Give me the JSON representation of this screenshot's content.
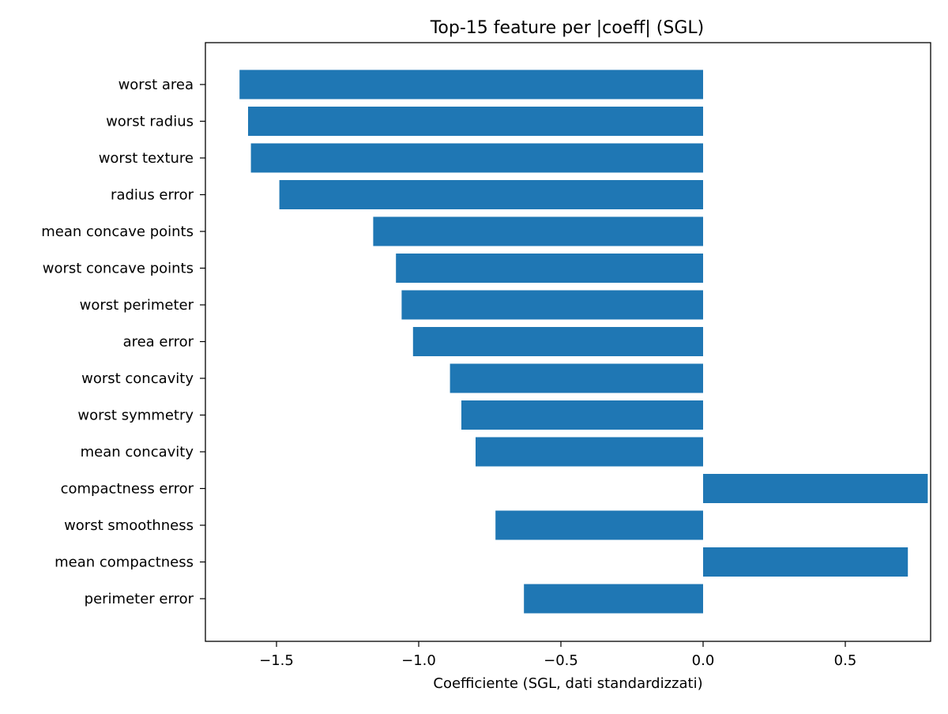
{
  "colors": {
    "bar": "#1f77b4",
    "axis": "#000000",
    "background": "#ffffff"
  },
  "chart_data": {
    "type": "bar",
    "orientation": "horizontal",
    "title": "Top-15 feature per |coeff| (SGL)",
    "xlabel": "Coefficiente (SGL, dati standardizzati)",
    "ylabel": "",
    "xlim": [
      -1.75,
      0.8
    ],
    "grid": false,
    "legend": "none",
    "xticks": [
      -1.5,
      -1.0,
      -0.5,
      0.0,
      0.5
    ],
    "xtick_labels": [
      "−1.5",
      "−1.0",
      "−0.5",
      "0.0",
      "0.5"
    ],
    "categories": [
      "worst area",
      "worst radius",
      "worst texture",
      "radius error",
      "mean concave points",
      "worst concave points",
      "worst perimeter",
      "area error",
      "worst concavity",
      "worst symmetry",
      "mean concavity",
      "compactness error",
      "worst smoothness",
      "mean compactness",
      "perimeter error"
    ],
    "values": [
      -1.63,
      -1.6,
      -1.59,
      -1.49,
      -1.16,
      -1.08,
      -1.06,
      -1.02,
      -0.89,
      -0.85,
      -0.8,
      0.79,
      -0.73,
      0.72,
      -0.63
    ]
  }
}
